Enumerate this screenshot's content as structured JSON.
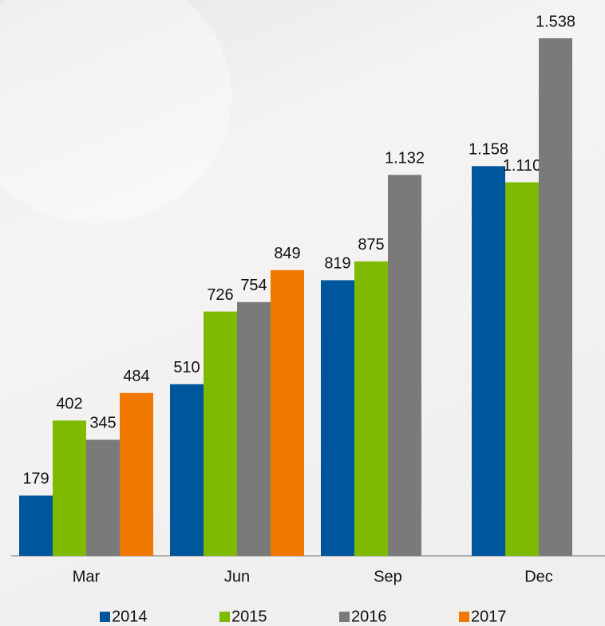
{
  "chart_data": {
    "type": "bar",
    "categories": [
      "Mar",
      "Jun",
      "Sep",
      "Dec"
    ],
    "series": [
      {
        "name": "2014",
        "color": "#00569c",
        "values": [
          179,
          510,
          819,
          1158
        ],
        "value_labels": [
          "179",
          "510",
          "819",
          "1.158"
        ]
      },
      {
        "name": "2015",
        "color": "#7fba00",
        "values": [
          402,
          726,
          875,
          1110
        ],
        "value_labels": [
          "402",
          "726",
          "875",
          "1.110"
        ]
      },
      {
        "name": "2016",
        "color": "#7a7a7a",
        "values": [
          345,
          754,
          1132,
          1538
        ],
        "value_labels": [
          "345",
          "754",
          "1.132",
          "1.538"
        ]
      },
      {
        "name": "2017",
        "color": "#f07800",
        "values": [
          484,
          849,
          null,
          null
        ],
        "value_labels": [
          "484",
          "849",
          null,
          null
        ]
      }
    ],
    "legend": "bottom"
  }
}
